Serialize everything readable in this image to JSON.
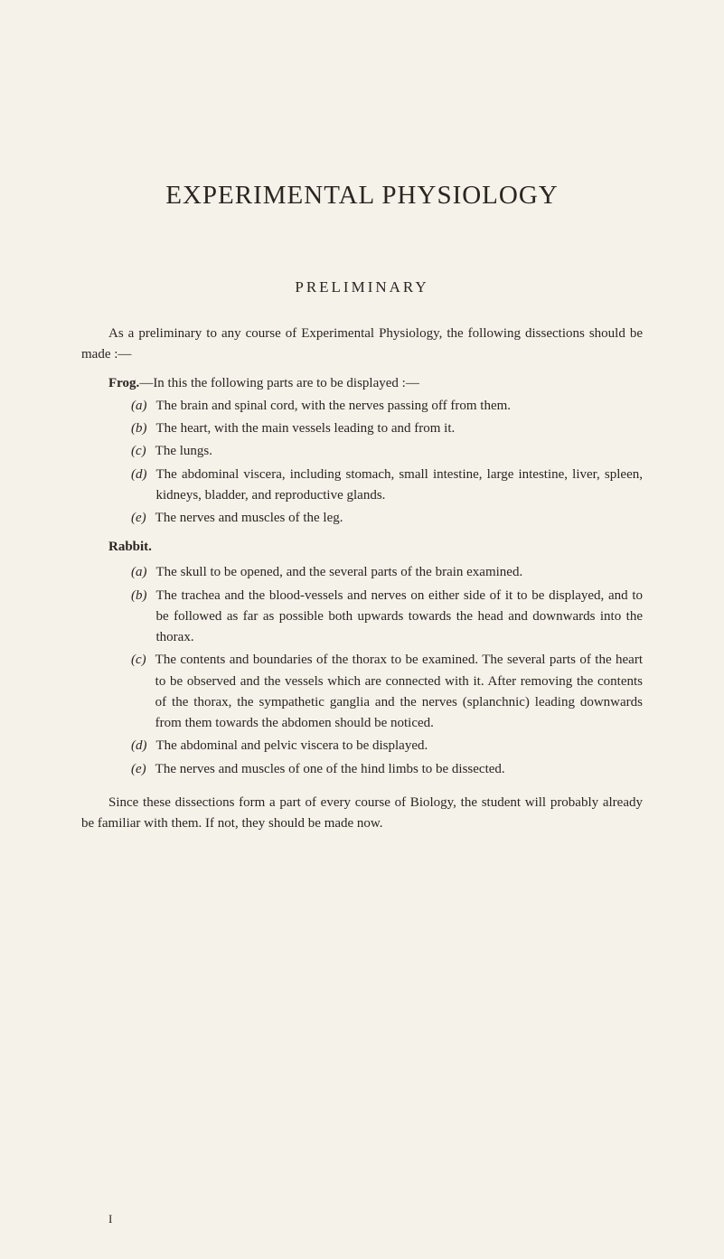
{
  "title": "EXPERIMENTAL PHYSIOLOGY",
  "section": "PRELIMINARY",
  "intro": "As a preliminary to any course of Experimental Physiology, the following dissections should be made :—",
  "frog": {
    "label_bold": "Frog.",
    "label_rest": "—In this the following parts are to be displayed :—",
    "items": [
      {
        "marker": "(a)",
        "text": "The brain and spinal cord, with the nerves passing off from them."
      },
      {
        "marker": "(b)",
        "text": "The heart, with the main vessels leading to and from it."
      },
      {
        "marker": "(c)",
        "text": "The lungs."
      },
      {
        "marker": "(d)",
        "text": "The abdominal viscera, including stomach, small intestine, large intestine, liver, spleen, kidneys, bladder, and reproductive glands."
      },
      {
        "marker": "(e)",
        "text": "The nerves and muscles of the leg."
      }
    ]
  },
  "rabbit": {
    "header": "Rabbit.",
    "items": [
      {
        "marker": "(a)",
        "text": "The skull to be opened, and the several parts of the brain examined."
      },
      {
        "marker": "(b)",
        "text": "The trachea and the blood-vessels and nerves on either side of it to be displayed, and to be followed as far as possible both upwards towards the head and downwards into the thorax."
      },
      {
        "marker": "(c)",
        "text": "The contents and boundaries of the thorax to be examined. The several parts of the heart to be observed and the vessels which are connected with it. After removing the contents of the thorax, the sympathetic ganglia and the nerves (splanchnic) leading downwards from them towards the abdomen should be noticed."
      },
      {
        "marker": "(d)",
        "text": "The abdominal and pelvic viscera to be displayed."
      },
      {
        "marker": "(e)",
        "text": "The nerves and muscles of one of the hind limbs to be dissected."
      }
    ]
  },
  "closing": "Since these dissections form a part of every course of Biology, the student will probably already be familiar with them. If not, they should be made now.",
  "page_number": "I",
  "colors": {
    "background": "#f5f2ea",
    "text": "#2a2520"
  },
  "typography": {
    "title_fontsize": 29,
    "section_fontsize": 17,
    "body_fontsize": 15,
    "font_family": "Georgia, Times New Roman, serif"
  }
}
